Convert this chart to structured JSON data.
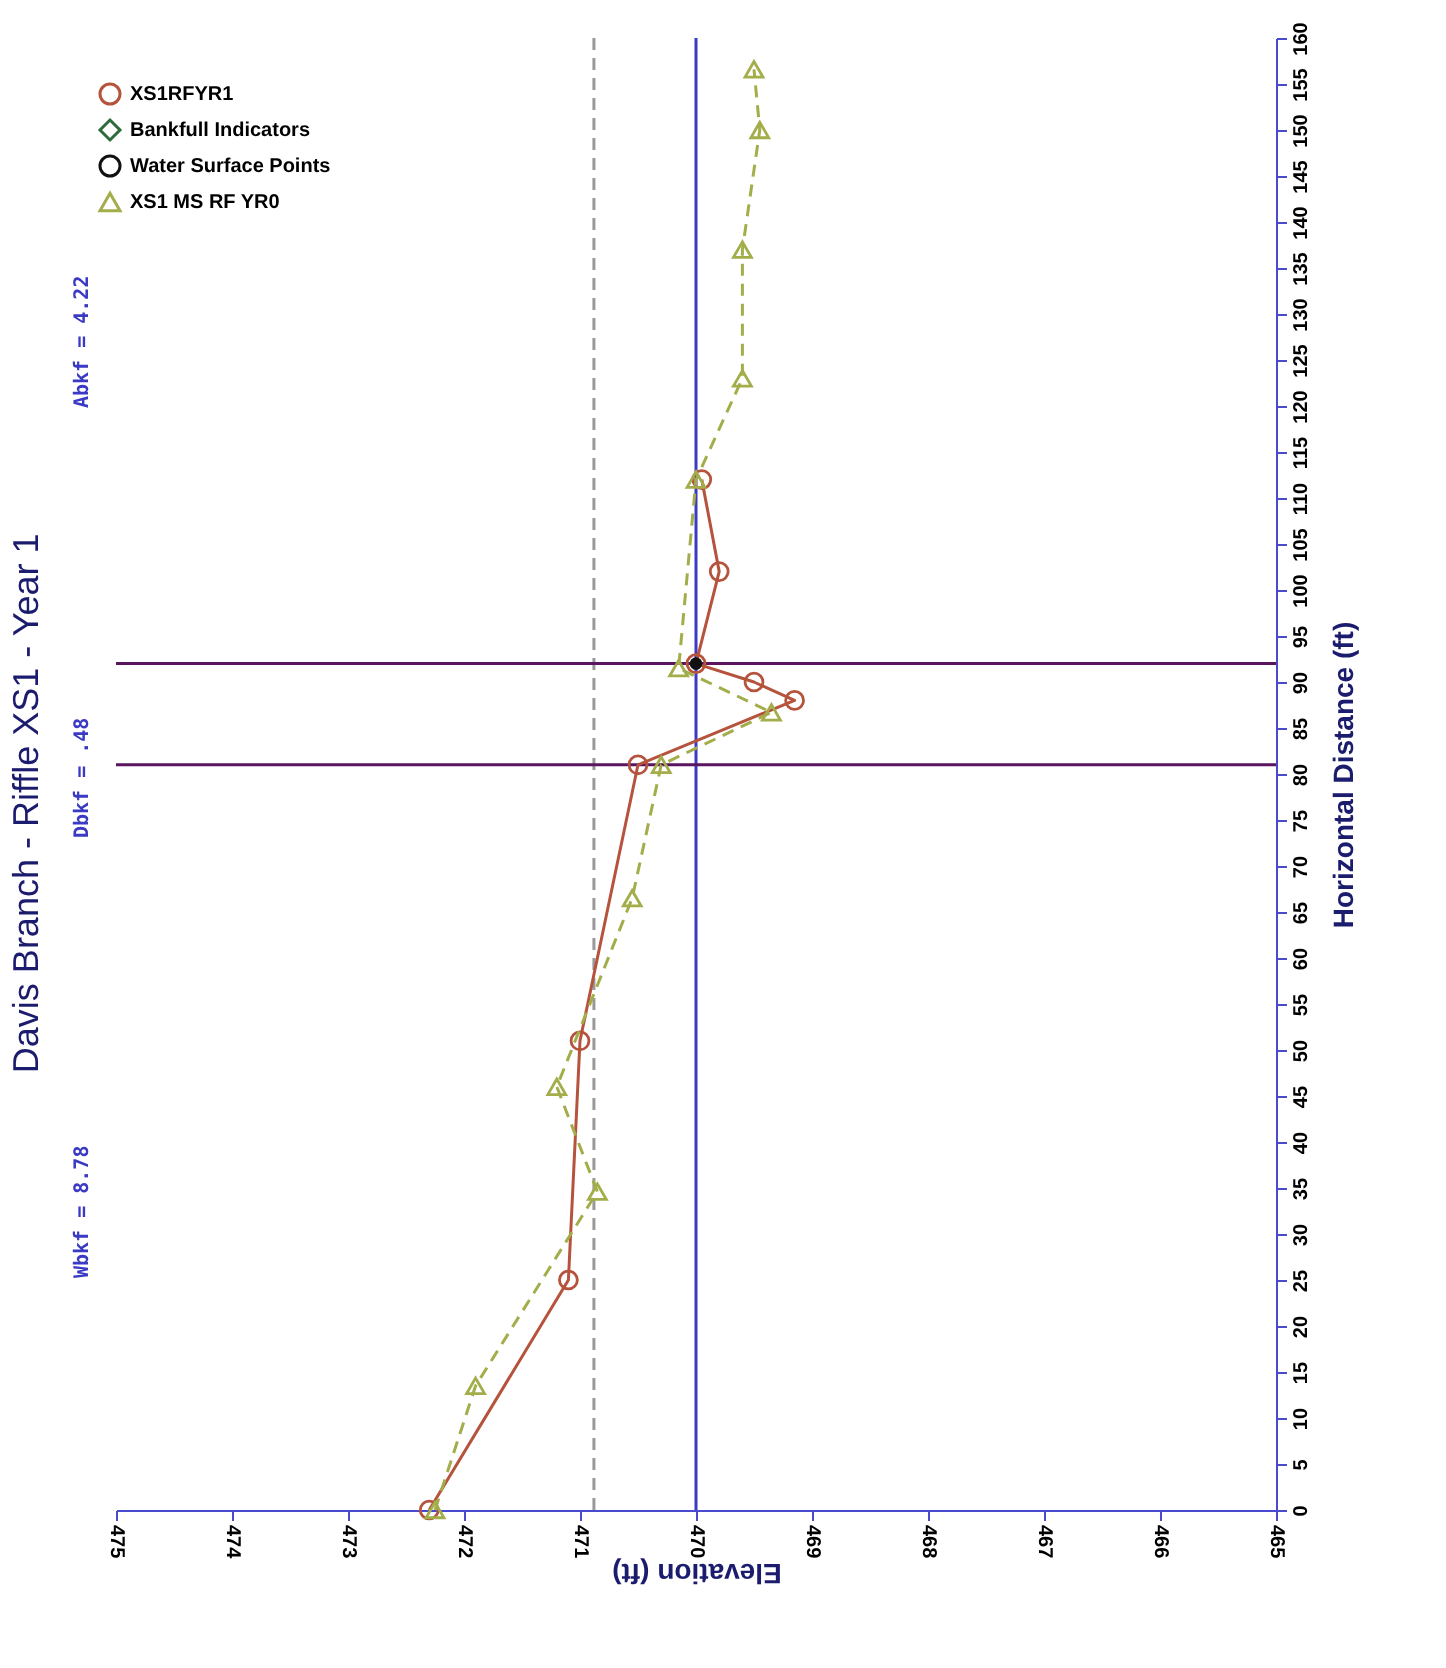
{
  "chart_data": {
    "type": "line",
    "title": "Davis Branch - Riffle XS1 - Year 1",
    "orientation": "horizontal",
    "xlabel": "Elevation (ft)",
    "ylabel": "Horizontal Distance (ft)",
    "xlim": [
      475,
      465
    ],
    "xticks": [
      475,
      474,
      473,
      472,
      471,
      470,
      469,
      468,
      467,
      466,
      465
    ],
    "ylim": [
      0,
      160
    ],
    "yticks": [
      0,
      5,
      10,
      15,
      20,
      25,
      30,
      35,
      40,
      45,
      50,
      55,
      60,
      65,
      70,
      75,
      80,
      85,
      90,
      95,
      100,
      105,
      110,
      115,
      120,
      125,
      130,
      135,
      140,
      145,
      150,
      155,
      160
    ],
    "grid": false,
    "legend": "top left",
    "series": [
      {
        "name": "XS1RFYR1",
        "color": "#b5533c",
        "marker": "circle",
        "line_style": "solid",
        "x": [
          0,
          25,
          51,
          81,
          88,
          90,
          92,
          102,
          112
        ],
        "values": [
          472.3,
          471.1,
          471.0,
          470.5,
          469.15,
          469.5,
          470.0,
          469.8,
          469.95
        ]
      },
      {
        "name": "Bankfull Indicators",
        "type": "scatter",
        "color": "#2e6b3a",
        "marker": "diamond"
      },
      {
        "name": "Water Surface Points",
        "type": "scatter",
        "color": "#111111",
        "marker": "circle",
        "x": [
          92
        ],
        "values": [
          470.0
        ]
      },
      {
        "name": "XS1 MS RF YR0",
        "color": "#a3ad4a",
        "marker": "triangle",
        "line_style": "dashed",
        "x": [
          0,
          13.5,
          34.6,
          46,
          66.5,
          81,
          86.7,
          91.5,
          112,
          123,
          137,
          150,
          156.6
        ],
        "values": [
          472.25,
          471.9,
          470.85,
          471.2,
          470.55,
          470.3,
          469.35,
          470.15,
          470.0,
          469.6,
          469.6,
          469.45,
          469.5
        ]
      }
    ],
    "ref_lines": [
      {
        "axis": "x",
        "value": 470.88,
        "color": "#999999",
        "line_style": "dashed"
      },
      {
        "axis": "x",
        "value": 470,
        "color": "#3a3ac4",
        "line_style": "solid"
      },
      {
        "axis": "y",
        "value": 81,
        "color": "#5a1460",
        "line_style": "solid"
      },
      {
        "axis": "y",
        "value": 92,
        "color": "#5a1460",
        "line_style": "solid"
      }
    ],
    "annotations": [
      "Wbkf = 8.78",
      "Dbkf = .48",
      "Abkf = 4.22"
    ]
  }
}
